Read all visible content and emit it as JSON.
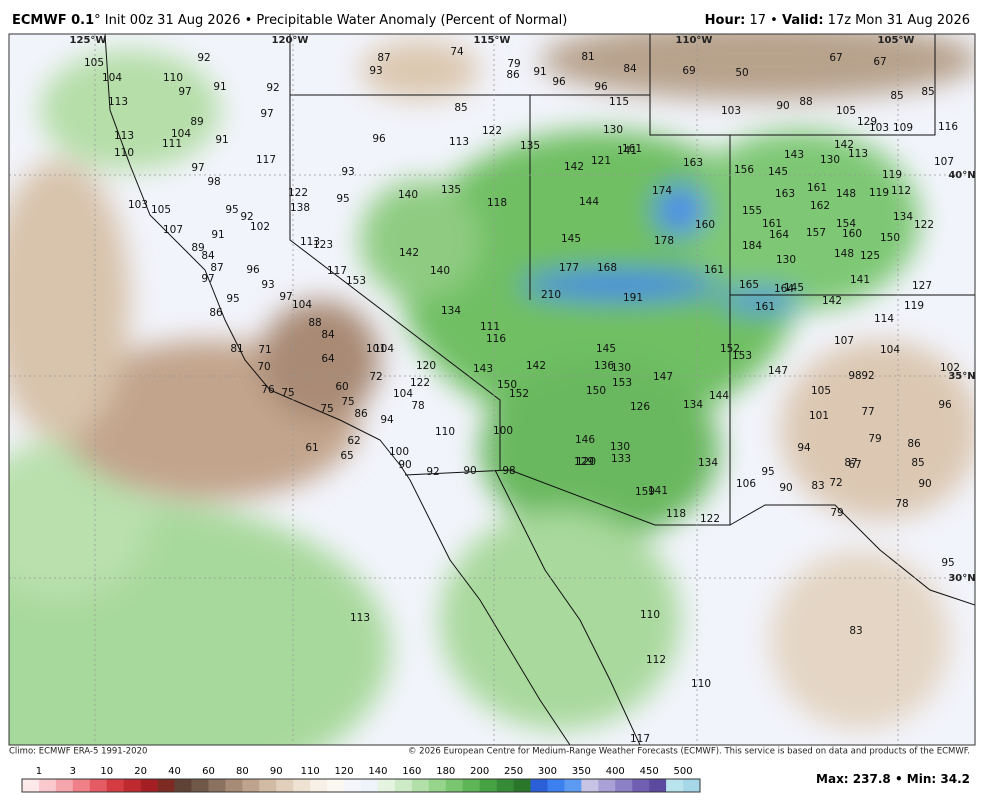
{
  "header": {
    "model": "ECMWF 0.1",
    "title": "° Init 00z 31 Aug 2026 • Precipitable Water Anomaly (Percent of Normal)",
    "hour_label": "Hour:",
    "hour": 17,
    "valid_label": "Valid:",
    "valid": "17z Mon 31 Aug 2026"
  },
  "geo_labels": [
    "125°W",
    "120°W",
    "115°W",
    "110°W",
    "105°W",
    "40°N",
    "35°N",
    "30°N"
  ],
  "map": {
    "labels": [
      105,
      104,
      92,
      110,
      97,
      91,
      92,
      87,
      93,
      74,
      79,
      86,
      91,
      81,
      96,
      84,
      96,
      69,
      50,
      67,
      67,
      85,
      85,
      113,
      97,
      85,
      115,
      103,
      90,
      88,
      105,
      129,
      103,
      109,
      116,
      113,
      104,
      111,
      89,
      91,
      110,
      117,
      96,
      113,
      122,
      135,
      130,
      141,
      161,
      142,
      121,
      163,
      143,
      130,
      142,
      113,
      107,
      97,
      93,
      156,
      145,
      119,
      98,
      122,
      140,
      135,
      118,
      144,
      174,
      163,
      161,
      148,
      119,
      112,
      103,
      105,
      95,
      138,
      95,
      155,
      162,
      134,
      122,
      92,
      102,
      107,
      91,
      160,
      161,
      164,
      157,
      154,
      160,
      150,
      113,
      123,
      145,
      178,
      184,
      89,
      84,
      87,
      142,
      96,
      117,
      153,
      140,
      177,
      168,
      161,
      130,
      148,
      125,
      97,
      93,
      141,
      127,
      165,
      164,
      145,
      95,
      97,
      104,
      210,
      191,
      142,
      161,
      119,
      86,
      134,
      88,
      111,
      116,
      84,
      114,
      107,
      81,
      71,
      104,
      101,
      145,
      152,
      153,
      104,
      64,
      120,
      143,
      142,
      136,
      130,
      147,
      147,
      98,
      92,
      102,
      70,
      72,
      122,
      150,
      153,
      105,
      76,
      75,
      60,
      104,
      152,
      150,
      144,
      96,
      75,
      86,
      78,
      126,
      134,
      101,
      77,
      75,
      94,
      110,
      100,
      146,
      130,
      79,
      86,
      62,
      61,
      94,
      100,
      65,
      129,
      120,
      133,
      134,
      87,
      67,
      85,
      90,
      92,
      90,
      98,
      95,
      106,
      90,
      83,
      72,
      90,
      159,
      141,
      118,
      122,
      79,
      78,
      95,
      113,
      110,
      83,
      112,
      110,
      117
    ]
  },
  "footer": {
    "climo": "Climo: ECMWF ERA-5 1991-2020",
    "copyright": "© 2026 European Centre for Medium-Range Weather Forecasts (ECMWF). This service is based on data and products of the ECMWF.",
    "max_label": "Max:",
    "max": 237.8,
    "min_label": "Min:",
    "min": 34.2
  },
  "legend": {
    "ticks": [
      1,
      3,
      10,
      20,
      40,
      60,
      80,
      90,
      110,
      120,
      140,
      160,
      180,
      200,
      250,
      300,
      350,
      400,
      450,
      500
    ],
    "colors": [
      "#fde8ea",
      "#f9c9cd",
      "#f5a6ad",
      "#ef8088",
      "#e45b63",
      "#d43b43",
      "#bf2a30",
      "#a31f23",
      "#7d2a22",
      "#5e4235",
      "#6f5847",
      "#8b7160",
      "#a68b77",
      "#bea38e",
      "#d2bba5",
      "#e2d0bd",
      "#eee2d2",
      "#f7f0e6",
      "#fbf8f2",
      "#f4f6fc",
      "#eef3fa",
      "#e4f4e0",
      "#cdebc6",
      "#b2e0a8",
      "#96d38b",
      "#7ac56f",
      "#5eb556",
      "#47a243",
      "#368c36",
      "#2a772c",
      "#2a5fd8",
      "#3c7fee",
      "#5d9bf3",
      "#c6c3e4",
      "#aaa2d6",
      "#8c80c6",
      "#7160b2",
      "#5c4aa0",
      "#b9e4ee",
      "#a6d7e8"
    ]
  }
}
